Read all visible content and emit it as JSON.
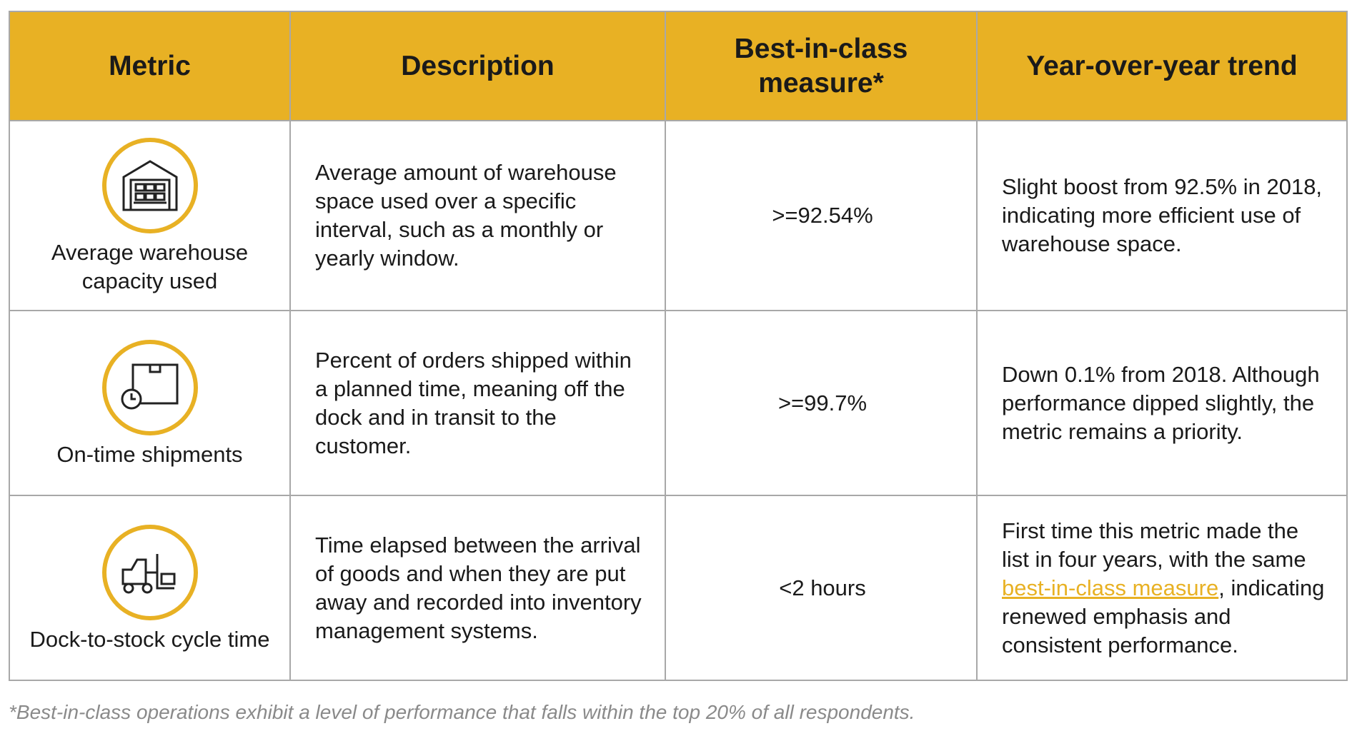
{
  "table": {
    "header": [
      "Metric",
      "Description",
      "Best-in-class measure*",
      "Year-over-year trend"
    ],
    "rows": [
      [
        "Average warehouse capacity used",
        "Average amount of warehouse space used over a specific interval, such as a monthly or yearly window.",
        ">=92.54%",
        "Slight boost from 92.5% in 2018, indicating more efficient use of warehouse space."
      ],
      [
        "On-time shipments",
        "Percent of orders shipped within a planned time, meaning off the dock and in transit to the customer.",
        ">=99.7%",
        "Down 0.1% from 2018. Although performance dipped slightly, the metric remains a priority."
      ],
      [
        "Dock-to-stock cycle time",
        "Time elapsed between the arrival of goods and when they are put away and recorded into inventory management systems.",
        "<2 hours",
        [
          "First time this metric made the list in four years, with the same ",
          "best-in-class measure",
          ", indicating renewed emphasis and consistent performance."
        ]
      ]
    ]
  },
  "footnote": "*Best-in-class operations exhibit a level of performance that falls within the top 20% of all respondents."
}
